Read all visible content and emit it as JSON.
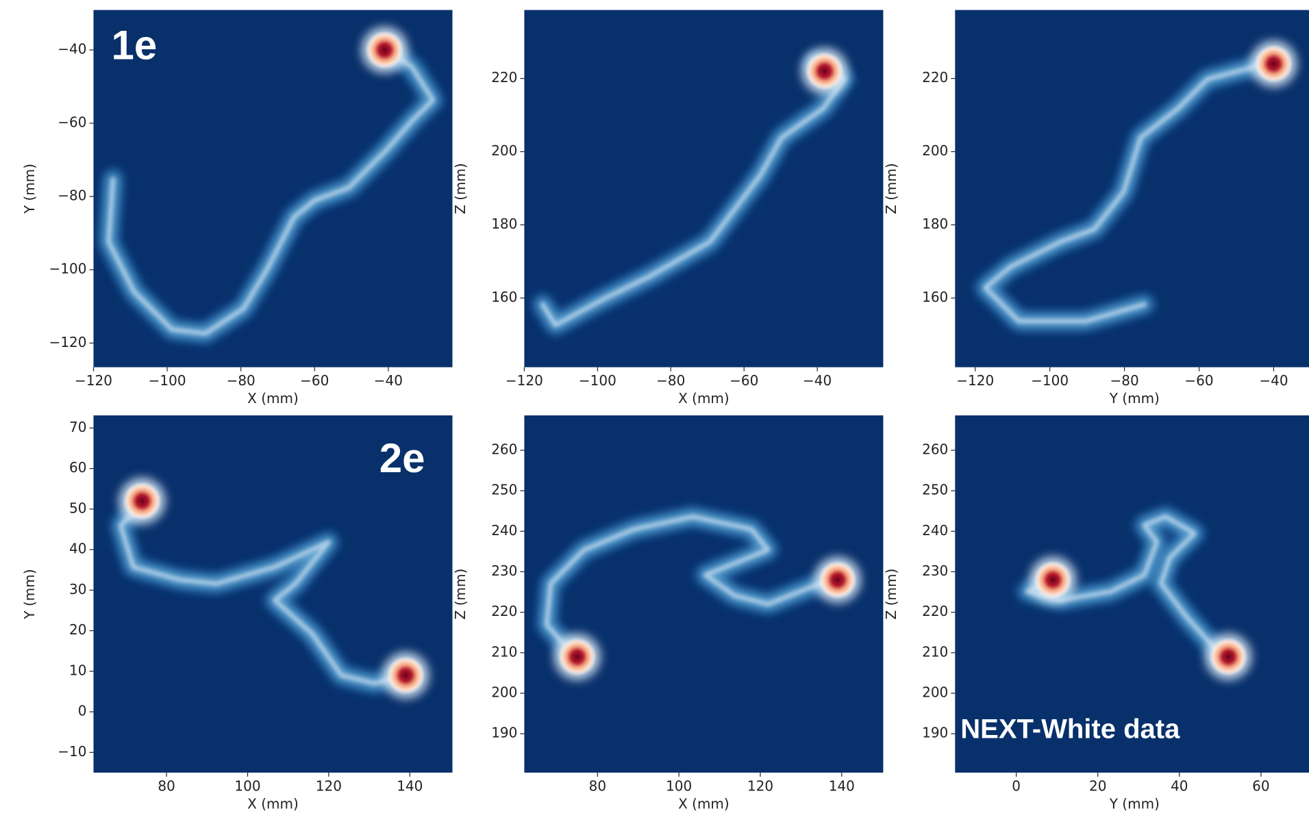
{
  "chart_data": [
    {
      "type": "track",
      "annotation": "1e",
      "xlabel": "X (mm)",
      "ylabel": "Y (mm)",
      "xlim": [
        -120,
        -22.6
      ],
      "ylim": [
        -126.6,
        -29.1
      ],
      "xticks": [
        {
          "value": -120,
          "label": "−120"
        },
        {
          "value": -100,
          "label": "−100"
        },
        {
          "value": -80,
          "label": "−80"
        },
        {
          "value": -60,
          "label": "−60"
        },
        {
          "value": -40,
          "label": "−40"
        }
      ],
      "yticks": [
        {
          "value": -40,
          "label": "−40"
        },
        {
          "value": -60,
          "label": "−60"
        },
        {
          "value": -80,
          "label": "−80"
        },
        {
          "value": -100,
          "label": "−100"
        },
        {
          "value": -120,
          "label": "−120"
        }
      ],
      "x": [
        -114.7,
        -115.9,
        -109,
        -98.7,
        -89.6,
        -79.3,
        -72.5,
        -65.6,
        -59.9,
        -50.7,
        -40.5,
        -33.6,
        -27.9,
        -33.6,
        -40.5
      ],
      "y": [
        -75.3,
        -92.4,
        -106,
        -116.3,
        -117.4,
        -110.6,
        -99.2,
        -85.6,
        -81,
        -77.6,
        -67.3,
        -59.4,
        -53.7,
        -44.6,
        -40
      ],
      "peaks_x": [
        -41
      ],
      "peaks_y": [
        -40
      ]
    },
    {
      "type": "track",
      "xlabel": "X (mm)",
      "ylabel": "Z (mm)",
      "xlim": [
        -120,
        -22
      ],
      "ylim": [
        141.1,
        238.7
      ],
      "xticks": [
        {
          "value": -120,
          "label": "−120"
        },
        {
          "value": -100,
          "label": "−100"
        },
        {
          "value": -80,
          "label": "−80"
        },
        {
          "value": -60,
          "label": "−60"
        },
        {
          "value": -40,
          "label": "−40"
        }
      ],
      "yticks": [
        220,
        200,
        180,
        160
      ],
      "x": [
        -115,
        -111.5,
        -99,
        -85.3,
        -69.3,
        -62.4,
        -55.5,
        -49.8,
        -38.4,
        -32.7,
        -40.7
      ],
      "y": [
        158.3,
        152.6,
        159.4,
        166.2,
        175.4,
        184.5,
        193.6,
        203.8,
        211.8,
        219.8,
        224.3
      ],
      "peaks_x": [
        -38
      ],
      "peaks_y": [
        222
      ]
    },
    {
      "type": "track",
      "xlabel": "Y (mm)",
      "ylabel": "Z (mm)",
      "xlim": [
        -125.4,
        -29.2
      ],
      "ylim": [
        141.1,
        238.7
      ],
      "xticks": [
        {
          "value": -120,
          "label": "−120"
        },
        {
          "value": -100,
          "label": "−100"
        },
        {
          "value": -80,
          "label": "−80"
        },
        {
          "value": -60,
          "label": "−60"
        },
        {
          "value": -40,
          "label": "−40"
        }
      ],
      "yticks": [
        220,
        200,
        180,
        160
      ],
      "x": [
        -74.6,
        -90.3,
        -108.3,
        -117.3,
        -110.6,
        -97.1,
        -88.1,
        -80.2,
        -75.7,
        -65.6,
        -57.8,
        -40.9
      ],
      "y": [
        158.3,
        153.7,
        153.7,
        162.8,
        168.5,
        175.4,
        178.8,
        189,
        203.8,
        211.8,
        219.8,
        224.3
      ],
      "peaks_x": [
        -40
      ],
      "peaks_y": [
        224
      ]
    },
    {
      "type": "track",
      "annotation": "2e",
      "xlabel": "X (mm)",
      "ylabel": "Y (mm)",
      "xlim": [
        62,
        150.5
      ],
      "ylim": [
        -15,
        73.1
      ],
      "xticks": [
        80,
        100,
        120,
        140
      ],
      "yticks": [
        70,
        60,
        50,
        40,
        30,
        20,
        10,
        0,
        {
          "value": -10,
          "label": "−10"
        }
      ],
      "x": [
        74.9,
        68.7,
        71.8,
        83.1,
        92.3,
        106.7,
        120,
        111.8,
        106.7,
        115.9,
        123.1,
        131.3,
        138.9
      ],
      "y": [
        52.1,
        46,
        35.7,
        32.6,
        31.6,
        35.7,
        41.9,
        31.6,
        27.5,
        19.3,
        9,
        7,
        9
      ],
      "peaks_x": [
        74,
        139
      ],
      "peaks_y": [
        52,
        9
      ]
    },
    {
      "type": "track",
      "xlabel": "X (mm)",
      "ylabel": "Z (mm)",
      "xlim": [
        62,
        150.2
      ],
      "ylim": [
        180.4,
        268.6
      ],
      "xticks": [
        80,
        100,
        120,
        140
      ],
      "yticks": [
        260,
        250,
        240,
        230,
        220,
        210,
        200,
        190
      ],
      "x": [
        74.7,
        67.5,
        68.5,
        76.7,
        89,
        103.4,
        117.8,
        121.9,
        106.5,
        113.7,
        121.9,
        132.2,
        138.3
      ],
      "y": [
        208.7,
        216.9,
        227.1,
        235.4,
        240.5,
        243.6,
        240.5,
        235.4,
        229.2,
        224.1,
        222,
        226.1,
        228.2
      ],
      "peaks_x": [
        75,
        139
      ],
      "peaks_y": [
        209,
        228
      ]
    },
    {
      "type": "track",
      "annotation": "NEXT-White data",
      "xlabel": "Y (mm)",
      "ylabel": "Z (mm)",
      "xlim": [
        -15,
        73
      ],
      "ylim": [
        180.4,
        268.6
      ],
      "xticks": [
        0,
        20,
        40,
        60
      ],
      "yticks": [
        260,
        250,
        240,
        230,
        220,
        210,
        200,
        190
      ],
      "x": [
        8.8,
        2.7,
        10.9,
        23.2,
        31.4,
        34.5,
        31.4,
        36.6,
        43.7,
        37.6,
        35.5,
        41.7,
        49.9,
        51.9
      ],
      "y": [
        228.2,
        225.1,
        223,
        225.1,
        229.2,
        237.4,
        241.5,
        243.6,
        239.5,
        233.4,
        227.1,
        218.9,
        209.7,
        208.7
      ],
      "peaks_x": [
        9,
        52
      ],
      "peaks_y": [
        228,
        209
      ]
    }
  ]
}
